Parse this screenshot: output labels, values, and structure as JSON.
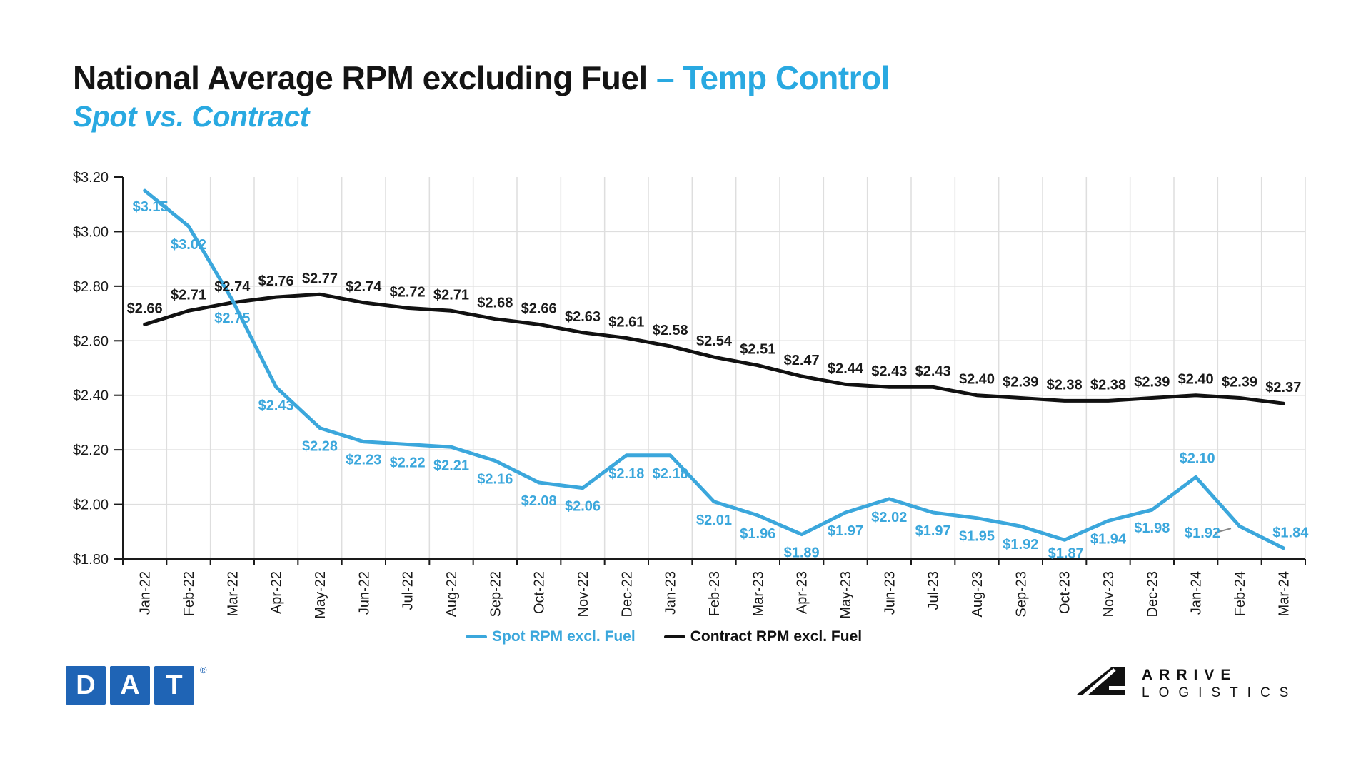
{
  "header": {
    "title_main": "National Average RPM excluding Fuel ",
    "title_accent": "– Temp Control",
    "subtitle": "Spot vs. Contract"
  },
  "colors": {
    "accent_blue": "#29A9E1",
    "text_dark": "#1a1a1a",
    "grid": "#DEDEDE",
    "axis": "#1a1a1a",
    "leader_line": "#8a8a8a"
  },
  "chart_data": {
    "type": "line",
    "title": "National Average RPM excluding Fuel – Temp Control, Spot vs. Contract",
    "categories": [
      "Jan-22",
      "Feb-22",
      "Mar-22",
      "Apr-22",
      "May-22",
      "Jun-22",
      "Jul-22",
      "Aug-22",
      "Sep-22",
      "Oct-22",
      "Nov-22",
      "Dec-22",
      "Jan-23",
      "Feb-23",
      "Mar-23",
      "Apr-23",
      "May-23",
      "Jun-23",
      "Jul-23",
      "Aug-23",
      "Sep-23",
      "Oct-23",
      "Nov-23",
      "Dec-23",
      "Jan-24",
      "Feb-24",
      "Mar-24"
    ],
    "series": [
      {
        "name": "Spot RPM excl. Fuel",
        "color": "#3BA7DC",
        "values": [
          3.15,
          3.02,
          2.75,
          2.43,
          2.28,
          2.23,
          2.22,
          2.21,
          2.16,
          2.08,
          2.06,
          2.18,
          2.18,
          2.01,
          1.96,
          1.89,
          1.97,
          2.02,
          1.97,
          1.95,
          1.92,
          1.87,
          1.94,
          1.98,
          2.1,
          1.92,
          1.84
        ]
      },
      {
        "name": "Contract RPM excl. Fuel",
        "color": "#111111",
        "values": [
          2.66,
          2.71,
          2.74,
          2.76,
          2.77,
          2.74,
          2.72,
          2.71,
          2.68,
          2.66,
          2.63,
          2.61,
          2.58,
          2.54,
          2.51,
          2.47,
          2.44,
          2.43,
          2.43,
          2.4,
          2.39,
          2.38,
          2.38,
          2.39,
          2.4,
          2.39,
          2.37
        ]
      }
    ],
    "y_axis": {
      "min": 1.8,
      "max": 3.2,
      "step": 0.2,
      "tick_labels": [
        "$3.20",
        "$3.00",
        "$2.80",
        "$2.60",
        "$2.40",
        "$2.20",
        "$2.00",
        "$1.80"
      ]
    },
    "grid": true,
    "legend_position": "bottom",
    "data_label_prefix": "$"
  },
  "footer": {
    "dat_logo": {
      "letters": [
        "D",
        "A",
        "T"
      ],
      "registered_mark": "®",
      "color": "#1F64B5"
    },
    "arrive_logo": {
      "line1": "ARRIVE",
      "line2": "LOGISTICS"
    }
  }
}
